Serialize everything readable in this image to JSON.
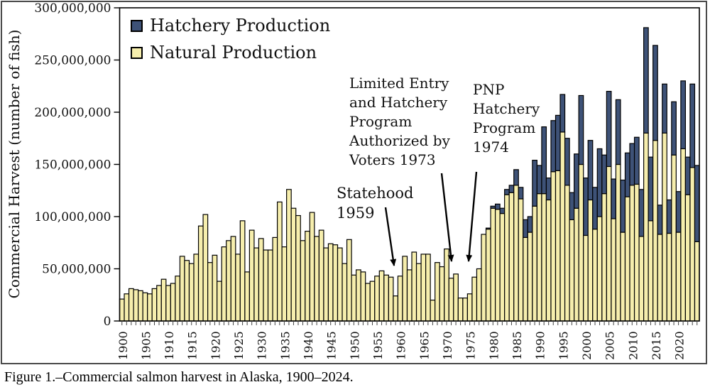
{
  "caption": "Figure 1.–Commercial salmon harvest in Alaska, 1900–2024.",
  "chart_data": {
    "type": "bar",
    "stacked": true,
    "title": "",
    "xlabel": "",
    "ylabel": "Commercial Harvest (number of fish)",
    "grid": false,
    "legend_position": "top-left inside plot",
    "values_unit": "millions of fish",
    "ylim_millions": [
      0,
      300
    ],
    "y_tick_labels": [
      "0",
      "50,000,000",
      "100,000,000",
      "150,000,000",
      "200,000,000",
      "250,000,000",
      "300,000,000"
    ],
    "x_tick_labels": [
      "1900",
      "1905",
      "1910",
      "1915",
      "1920",
      "1925",
      "1930",
      "1935",
      "1940",
      "1945",
      "1950",
      "1955",
      "1960",
      "1965",
      "1970",
      "1975",
      "1980",
      "1985",
      "1990",
      "1995",
      "2000",
      "2005",
      "2010",
      "2015",
      "2020"
    ],
    "years": [
      1900,
      1901,
      1902,
      1903,
      1904,
      1905,
      1906,
      1907,
      1908,
      1909,
      1910,
      1911,
      1912,
      1913,
      1914,
      1915,
      1916,
      1917,
      1918,
      1919,
      1920,
      1921,
      1922,
      1923,
      1924,
      1925,
      1926,
      1927,
      1928,
      1929,
      1930,
      1931,
      1932,
      1933,
      1934,
      1935,
      1936,
      1937,
      1938,
      1939,
      1940,
      1941,
      1942,
      1943,
      1944,
      1945,
      1946,
      1947,
      1948,
      1949,
      1950,
      1951,
      1952,
      1953,
      1954,
      1955,
      1956,
      1957,
      1958,
      1959,
      1960,
      1961,
      1962,
      1963,
      1964,
      1965,
      1966,
      1967,
      1968,
      1969,
      1970,
      1971,
      1972,
      1973,
      1974,
      1975,
      1976,
      1977,
      1978,
      1979,
      1980,
      1981,
      1982,
      1983,
      1984,
      1985,
      1986,
      1987,
      1988,
      1989,
      1990,
      1991,
      1992,
      1993,
      1994,
      1995,
      1996,
      1997,
      1998,
      1999,
      2000,
      2001,
      2002,
      2003,
      2004,
      2005,
      2006,
      2007,
      2008,
      2009,
      2010,
      2011,
      2012,
      2013,
      2014,
      2015,
      2016,
      2017,
      2018,
      2019,
      2020,
      2021,
      2022,
      2023,
      2024
    ],
    "series": [
      {
        "name": "Hatchery Production",
        "color": "#3e5277",
        "values_millions": [
          0,
          0,
          0,
          0,
          0,
          0,
          0,
          0,
          0,
          0,
          0,
          0,
          0,
          0,
          0,
          0,
          0,
          0,
          0,
          0,
          0,
          0,
          0,
          0,
          0,
          0,
          0,
          0,
          0,
          0,
          0,
          0,
          0,
          0,
          0,
          0,
          0,
          0,
          0,
          0,
          0,
          0,
          0,
          0,
          0,
          0,
          0,
          0,
          0,
          0,
          0,
          0,
          0,
          0,
          0,
          0,
          0,
          0,
          0,
          0,
          0,
          0,
          0,
          0,
          0,
          0,
          0,
          0,
          0,
          0,
          0,
          0,
          0,
          0,
          0,
          0,
          0,
          0,
          0,
          1,
          2,
          5,
          5,
          5,
          7,
          15,
          11,
          17,
          15,
          44,
          27,
          64,
          21,
          49,
          53,
          36,
          45,
          26,
          52,
          66,
          55,
          57,
          40,
          65,
          37,
          72,
          38,
          62,
          50,
          42,
          40,
          45,
          45,
          101,
          61,
          91,
          28,
          47,
          32,
          51,
          39,
          65,
          36,
          80,
          73
        ]
      },
      {
        "name": "Natural Production",
        "color": "#f6eead",
        "values_millions": [
          21,
          26,
          31,
          30,
          29,
          27,
          26,
          31,
          34,
          40,
          34,
          36,
          43,
          62,
          58,
          55,
          64,
          91,
          102,
          56,
          63,
          38,
          71,
          77,
          81,
          64,
          96,
          47,
          87,
          70,
          79,
          68,
          68,
          80,
          114,
          71,
          126,
          108,
          101,
          77,
          86,
          104,
          81,
          87,
          70,
          74,
          73,
          70,
          55,
          78,
          44,
          49,
          47,
          36,
          38,
          43,
          48,
          44,
          42,
          24,
          43,
          62,
          49,
          66,
          55,
          64,
          64,
          20,
          56,
          52,
          69,
          41,
          45,
          22,
          22,
          26,
          42,
          50,
          83,
          88,
          108,
          107,
          103,
          121,
          123,
          130,
          117,
          80,
          85,
          110,
          122,
          122,
          116,
          143,
          144,
          181,
          130,
          97,
          108,
          150,
          82,
          116,
          88,
          100,
          122,
          148,
          98,
          150,
          85,
          119,
          130,
          131,
          81,
          180,
          96,
          173,
          83,
          180,
          84,
          159,
          85,
          165,
          121,
          147,
          76
        ]
      }
    ],
    "annotations": [
      {
        "text": "Limited Entry\nand Hatchery\nProgram\nAuthorized by\nVoters 1973",
        "points_to_year": 1973
      },
      {
        "text": "PNP\nHatchery\nProgram\n1974",
        "points_to_year": 1974
      },
      {
        "text": "Statehood\n1959",
        "points_to_year": 1959
      }
    ]
  }
}
